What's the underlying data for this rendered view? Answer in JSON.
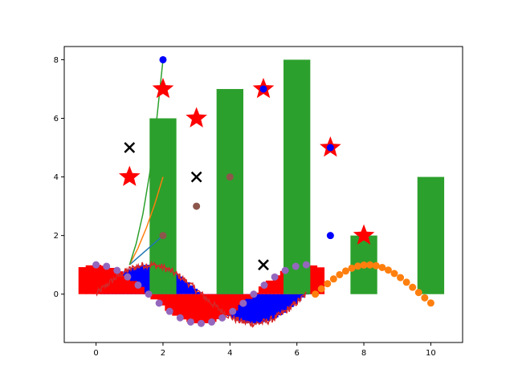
{
  "chart_data": {
    "type": "mixed",
    "title": "",
    "xlabel": "",
    "ylabel": "",
    "xlim": [
      -0.95,
      10.95
    ],
    "ylim": [
      -1.65,
      8.45
    ],
    "grid": false,
    "legend": "none",
    "xticks": [
      {
        "value": 0,
        "label": "0"
      },
      {
        "value": 2,
        "label": "2"
      },
      {
        "value": 4,
        "label": "4"
      },
      {
        "value": 6,
        "label": "6"
      },
      {
        "value": 8,
        "label": "8"
      },
      {
        "value": 10,
        "label": "10"
      }
    ],
    "yticks": [
      {
        "value": 0,
        "label": "0"
      },
      {
        "value": 2,
        "label": "2"
      },
      {
        "value": 4,
        "label": "4"
      },
      {
        "value": 6,
        "label": "6"
      },
      {
        "value": 8,
        "label": "8"
      }
    ],
    "green_bars": {
      "color": "#2ca02c",
      "width": 0.8,
      "x": [
        2,
        4,
        6,
        8,
        10
      ],
      "values": [
        6,
        7,
        8,
        2,
        4
      ]
    },
    "lines": [
      {
        "color": "#1f77b4",
        "points": [
          [
            1,
            1
          ],
          [
            2,
            2
          ]
        ]
      },
      {
        "color": "#ff7f0e",
        "points": [
          [
            1,
            1
          ],
          [
            1.25,
            1.56
          ],
          [
            1.5,
            2.25
          ],
          [
            1.75,
            3.06
          ],
          [
            2,
            4
          ]
        ]
      },
      {
        "color": "#2ca02c",
        "points": [
          [
            1,
            1
          ],
          [
            1.2,
            1.73
          ],
          [
            1.4,
            2.74
          ],
          [
            1.6,
            4.1
          ],
          [
            1.8,
            5.83
          ],
          [
            2,
            8
          ]
        ]
      }
    ],
    "blue_dots": {
      "color": "#0000ff",
      "points": [
        [
          2,
          8
        ],
        [
          5,
          7
        ],
        [
          7,
          5
        ],
        [
          7,
          2
        ]
      ]
    },
    "brown_dots": {
      "color": "#8c564b",
      "points": [
        [
          3,
          3
        ],
        [
          4,
          4
        ],
        [
          2,
          2
        ]
      ]
    },
    "red_stars": {
      "color": "#ff0000",
      "points": [
        [
          1,
          4
        ],
        [
          2,
          7
        ],
        [
          3,
          6
        ],
        [
          5,
          7
        ],
        [
          7,
          5
        ],
        [
          8,
          2
        ]
      ]
    },
    "black_x": {
      "color": "#000000",
      "points": [
        [
          1,
          5
        ],
        [
          3,
          4
        ],
        [
          5,
          1
        ]
      ]
    },
    "orange_dots": {
      "color": "#ff7f0e",
      "x_start": 6.55,
      "x_end": 10,
      "count": 20,
      "phase_shift": 6.55
    },
    "purple_dots": {
      "color": "#9467bd",
      "x_start": 0,
      "x_end": 6.28,
      "count": 21
    },
    "blue_bars": {
      "color": "#0000ff",
      "x_start": 0.2,
      "x_end": 6.4,
      "count": 55,
      "width": 0.16
    },
    "red_bars": {
      "color": "#ff0000",
      "x_start": -0.4,
      "x_end": 6.7,
      "count": 34,
      "width": 0.25,
      "amplitude": 1
    },
    "red_wave": {
      "color": "#d62728",
      "x_start": 0,
      "x_end": 6.28,
      "noise": 0.12
    }
  }
}
